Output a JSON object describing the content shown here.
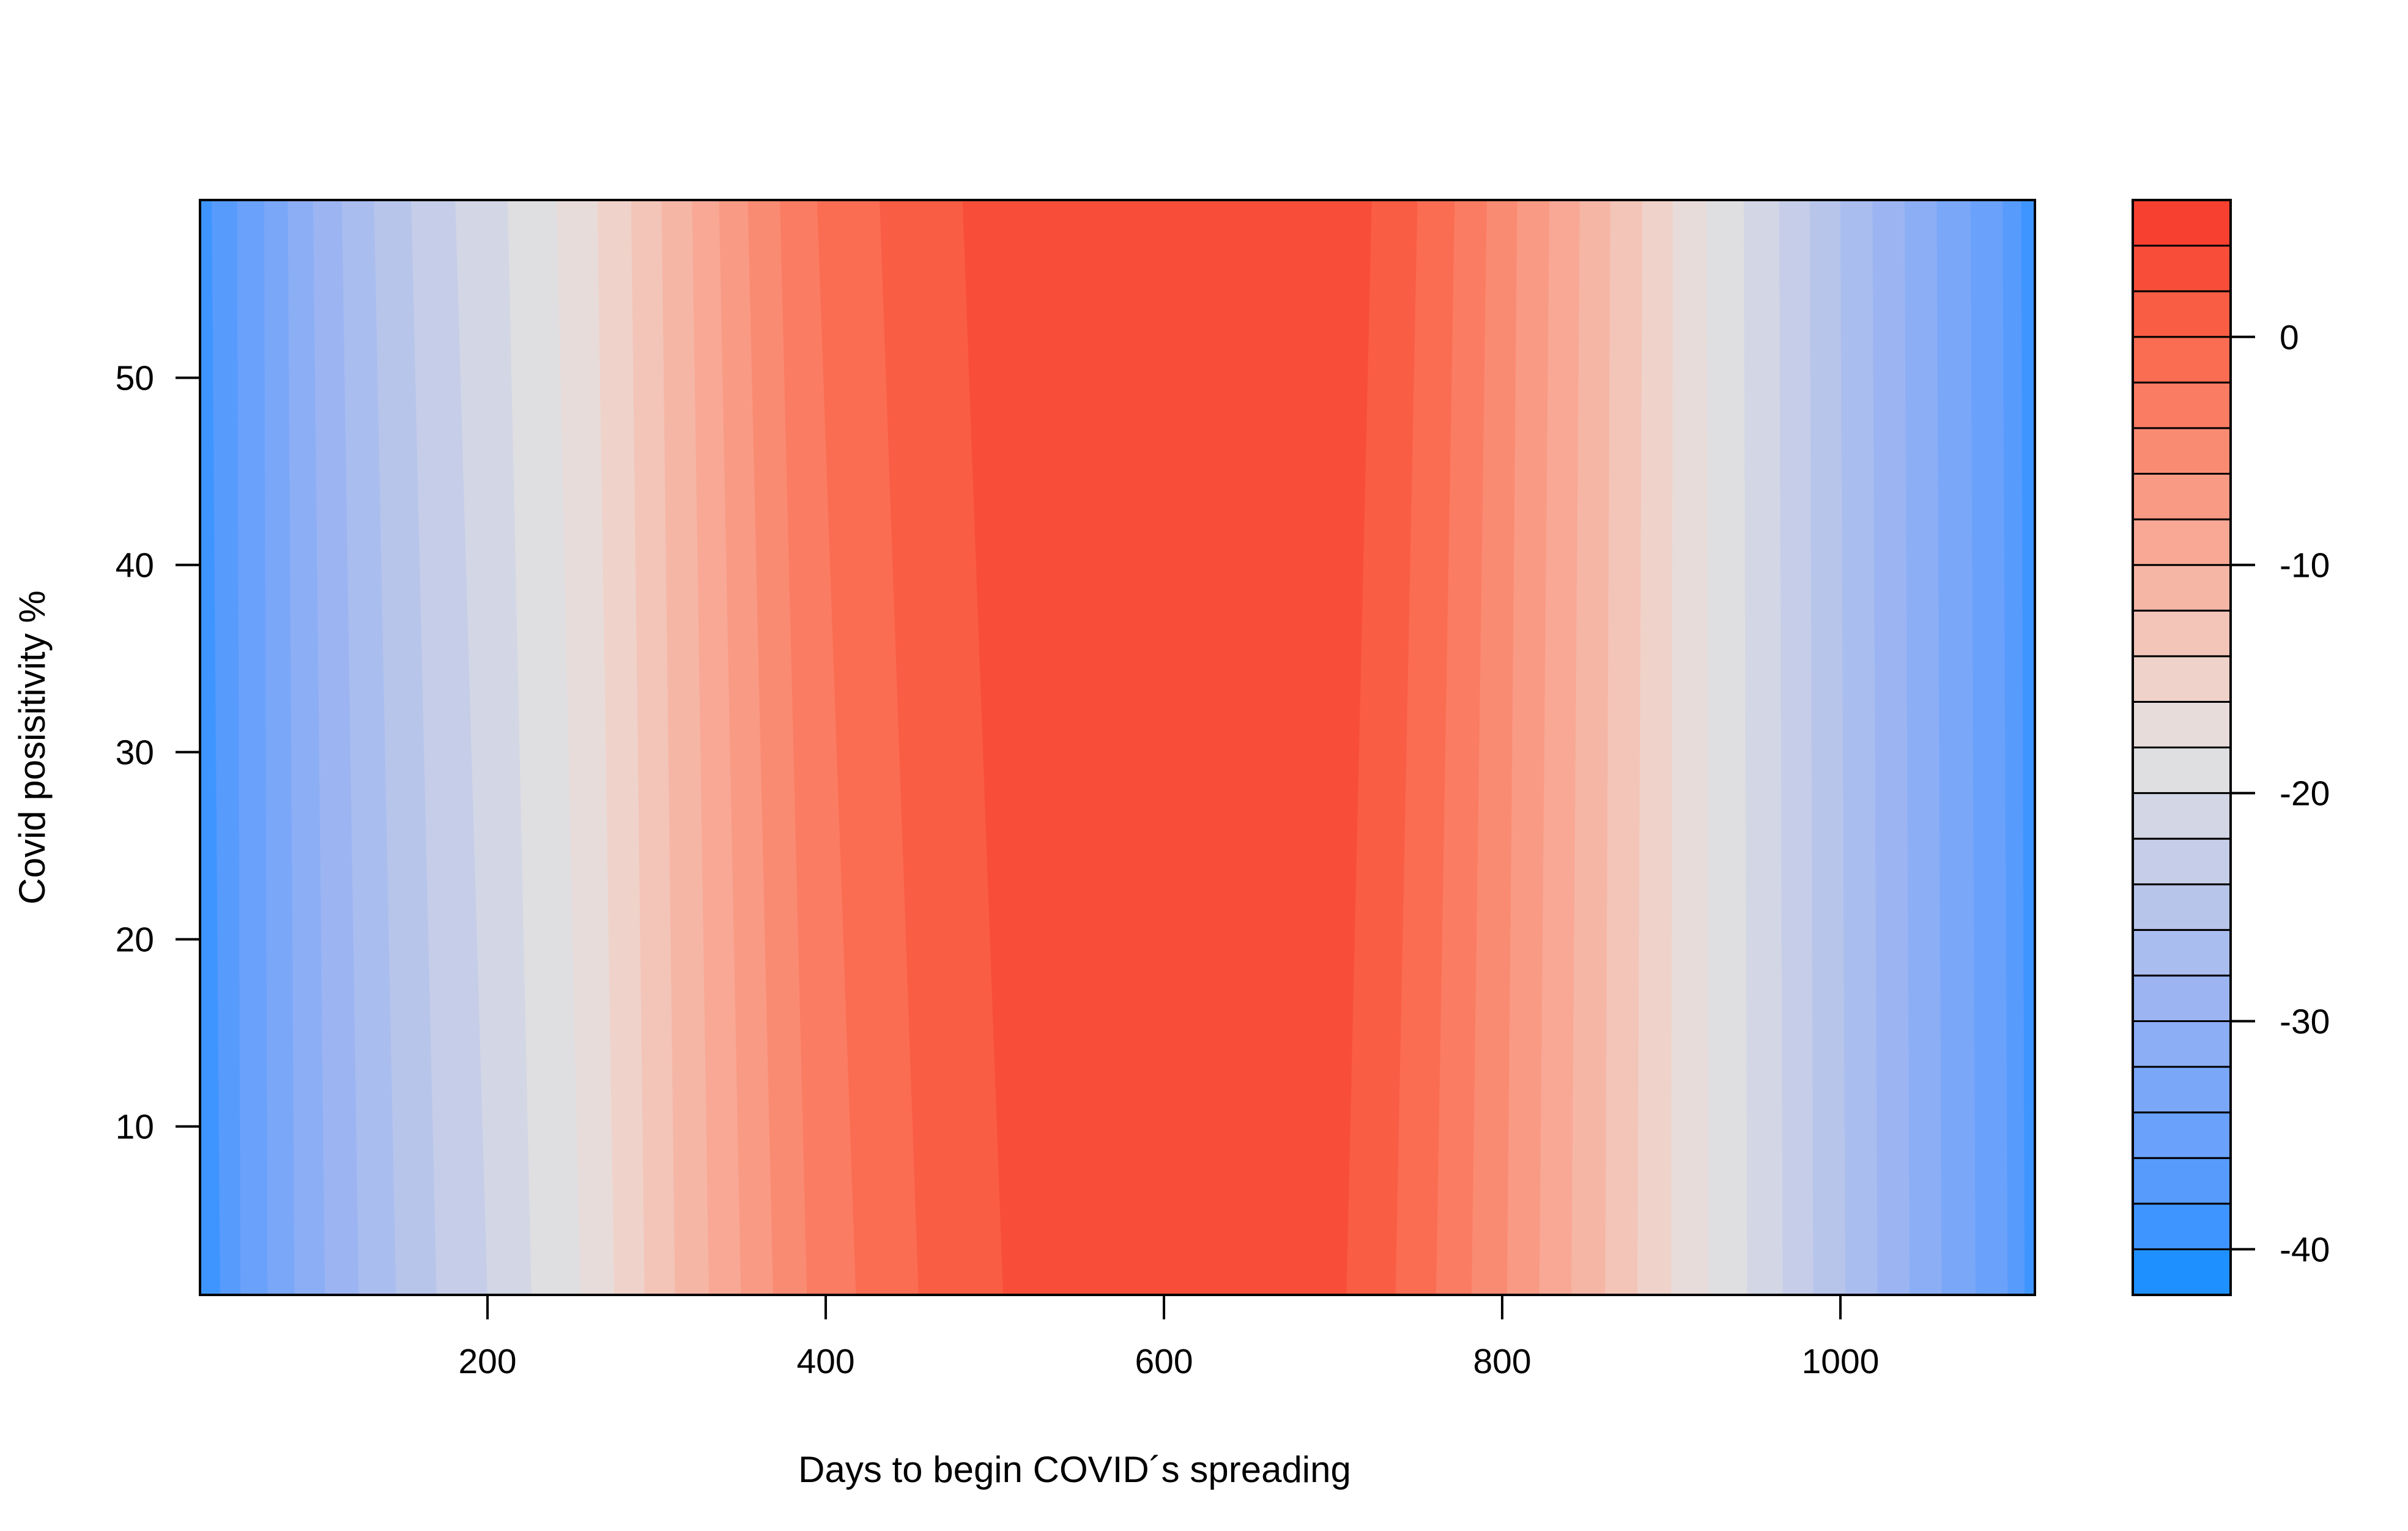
{
  "chart_data": {
    "type": "heatmap",
    "title": "",
    "xlabel": "Days to begin COVID´s spreading",
    "ylabel": "Covid posisitivity %",
    "xlim": [
      30,
      1115
    ],
    "ylim": [
      1,
      59.5
    ],
    "x_ticks": [
      "200",
      "400",
      "600",
      "800",
      "1000"
    ],
    "y_ticks": [
      "10",
      "20",
      "30",
      "40",
      "50"
    ],
    "colorbar": {
      "range": [
        -42,
        6
      ],
      "levels": 24,
      "ticks": [
        "0",
        "-10",
        "-20",
        "-30",
        "-40"
      ]
    },
    "colors": [
      "#1E90FF",
      "#3F95FF",
      "#579BFD",
      "#6AA1FB",
      "#7BA7F8",
      "#8CAEF5",
      "#9CB5F2",
      "#AABDEF",
      "#B8C5EB",
      "#C5CDE8",
      "#D2D6E5",
      "#DFDEE1",
      "#E8DCDA",
      "#EFD2C9",
      "#F3C4B8",
      "#F6B6A6",
      "#F8A895",
      "#F99A84",
      "#FA8B73",
      "#FA7C62",
      "#FA6D52",
      "#F95D44",
      "#F84E39",
      "#F7402F"
    ],
    "boundaries": [
      {
        "level": -40,
        "bottom": 42,
        "top": 37
      },
      {
        "level": -38,
        "bottom": 54,
        "top": 52
      },
      {
        "level": -36,
        "bottom": 70,
        "top": 68
      },
      {
        "level": -34,
        "bottom": 86,
        "top": 82
      },
      {
        "level": -32,
        "bottom": 104,
        "top": 97
      },
      {
        "level": -30,
        "bottom": 124,
        "top": 114
      },
      {
        "level": -28,
        "bottom": 146,
        "top": 133
      },
      {
        "level": -26,
        "bottom": 170,
        "top": 155
      },
      {
        "level": -24,
        "bottom": 200,
        "top": 181
      },
      {
        "level": -22,
        "bottom": 226,
        "top": 212
      },
      {
        "level": -20,
        "bottom": 255,
        "top": 241
      },
      {
        "level": -18,
        "bottom": 275,
        "top": 265
      },
      {
        "level": -16,
        "bottom": 293,
        "top": 285
      },
      {
        "level": -14,
        "bottom": 311,
        "top": 303
      },
      {
        "level": -12,
        "bottom": 331,
        "top": 321
      },
      {
        "level": -10,
        "bottom": 350,
        "top": 337
      },
      {
        "level": -8,
        "bottom": 369,
        "top": 354
      },
      {
        "level": -6,
        "bottom": 389,
        "top": 373
      },
      {
        "level": -4,
        "bottom": 418,
        "top": 395
      },
      {
        "level": -2,
        "bottom": 455,
        "top": 432
      },
      {
        "level": 0,
        "bottom": 505,
        "top": 481
      },
      {
        "level": 2,
        "bottom": 592,
        "top": 564
      },
      {
        "level": 2,
        "bottom": 650,
        "top": 669
      },
      {
        "level": 0,
        "bottom": 708,
        "top": 723
      },
      {
        "level": -2,
        "bottom": 737,
        "top": 750
      },
      {
        "level": -4,
        "bottom": 761,
        "top": 772
      },
      {
        "level": -6,
        "bottom": 782,
        "top": 791
      },
      {
        "level": -8,
        "bottom": 803,
        "top": 809
      },
      {
        "level": -10,
        "bottom": 822,
        "top": 828
      },
      {
        "level": -12,
        "bottom": 841,
        "top": 846
      },
      {
        "level": -14,
        "bottom": 861,
        "top": 864
      },
      {
        "level": -16,
        "bottom": 880,
        "top": 883
      },
      {
        "level": -18,
        "bottom": 900,
        "top": 901
      },
      {
        "level": -20,
        "bottom": 922,
        "top": 921
      },
      {
        "level": -22,
        "bottom": 945,
        "top": 943
      },
      {
        "level": -24,
        "bottom": 966,
        "top": 964
      },
      {
        "level": -26,
        "bottom": 984,
        "top": 982
      },
      {
        "level": -28,
        "bottom": 1003,
        "top": 1000
      },
      {
        "level": -30,
        "bottom": 1022,
        "top": 1019
      },
      {
        "level": -32,
        "bottom": 1041,
        "top": 1038
      },
      {
        "level": -34,
        "bottom": 1060,
        "top": 1057
      },
      {
        "level": -36,
        "bottom": 1080,
        "top": 1077
      },
      {
        "level": -38,
        "bottom": 1099,
        "top": 1096
      },
      {
        "level": -40,
        "bottom": 1109,
        "top": 1107
      }
    ]
  }
}
